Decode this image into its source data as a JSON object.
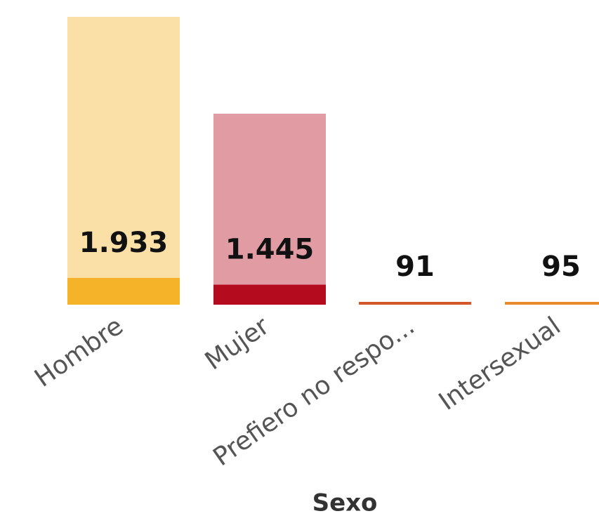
{
  "chart_data": {
    "type": "bar",
    "x_label": "Sexo",
    "categories": [
      "Hombre",
      "Mujer",
      "Prefiero no respo...",
      "Intersexual"
    ],
    "series": [
      {
        "colors": [
          "#fadfa6",
          "#e19ba2",
          "#f0b39c",
          "#f6cfa4"
        ],
        "values": [
          20800,
          13800,
          null,
          null
        ]
      },
      {
        "colors": [
          "#f5b32a",
          "#b40b1e",
          "#d2582a",
          "#e88a2a"
        ],
        "values": [
          1933,
          1445,
          91,
          95
        ],
        "value_labels": [
          "1.933",
          "1.445",
          "91",
          "95"
        ]
      }
    ],
    "ylim": [
      0,
      21000
    ]
  }
}
